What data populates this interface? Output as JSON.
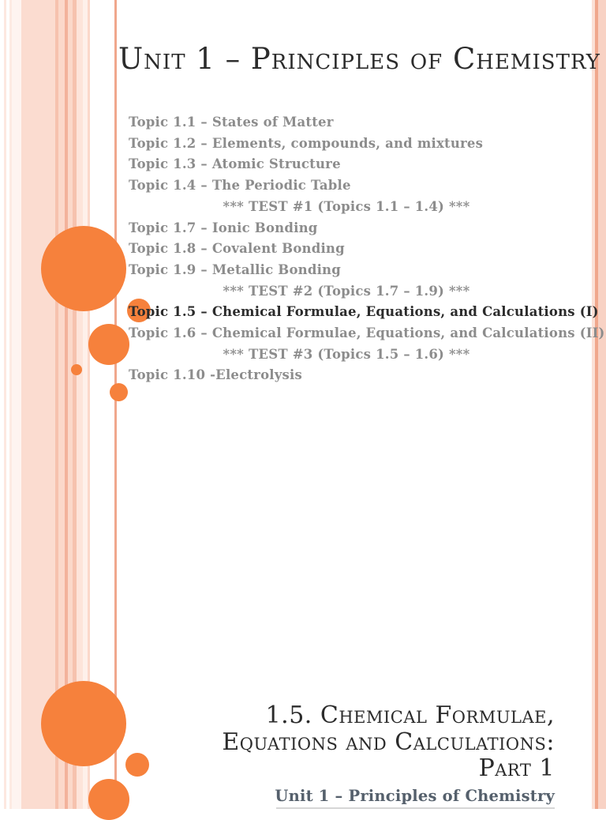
{
  "colors": {
    "accent_orange": "#F6813C",
    "topic_gray": "#8C8C8C",
    "text_dark": "#2B2B2B",
    "subtitle_slate": "#55606C",
    "stripe_peach": "#FBDCD0",
    "stripe_salmon": "#F0A78C"
  },
  "slide1": {
    "title": "Unit 1 – Principles of Chemistry",
    "topics": [
      {
        "text": "Topic 1.1 – States of Matter"
      },
      {
        "text": "Topic 1.2 – Elements, compounds, and mixtures"
      },
      {
        "text": "Topic 1.3 – Atomic Structure"
      },
      {
        "text": "Topic 1.4 – The Periodic Table"
      },
      {
        "text": "*** TEST #1 (Topics 1.1 – 1.4) ***"
      },
      {
        "text": "Topic 1.7 – Ionic Bonding"
      },
      {
        "text": "Topic 1.8 – Covalent Bonding"
      },
      {
        "text": "Topic 1.9 – Metallic Bonding"
      },
      {
        "text": "*** TEST #2 (Topics 1.7 – 1.9) ***"
      },
      {
        "text": "Topic 1.5 – Chemical Formulae, Equations, and Calculations (I)"
      },
      {
        "text": "Topic 1.6 – Chemical Formulae, Equations, and Calculations (II)"
      },
      {
        "text": "*** TEST #3 (Topics 1.5 – 1.6) ***"
      },
      {
        "text": "Topic 1.10 -Electrolysis"
      }
    ]
  },
  "slide2": {
    "title_line1": "1.5. Chemical Formulae,",
    "title_line2": "Equations and Calculations:",
    "title_line3": "Part 1",
    "subtitle": "Unit 1 – Principles of Chemistry"
  }
}
